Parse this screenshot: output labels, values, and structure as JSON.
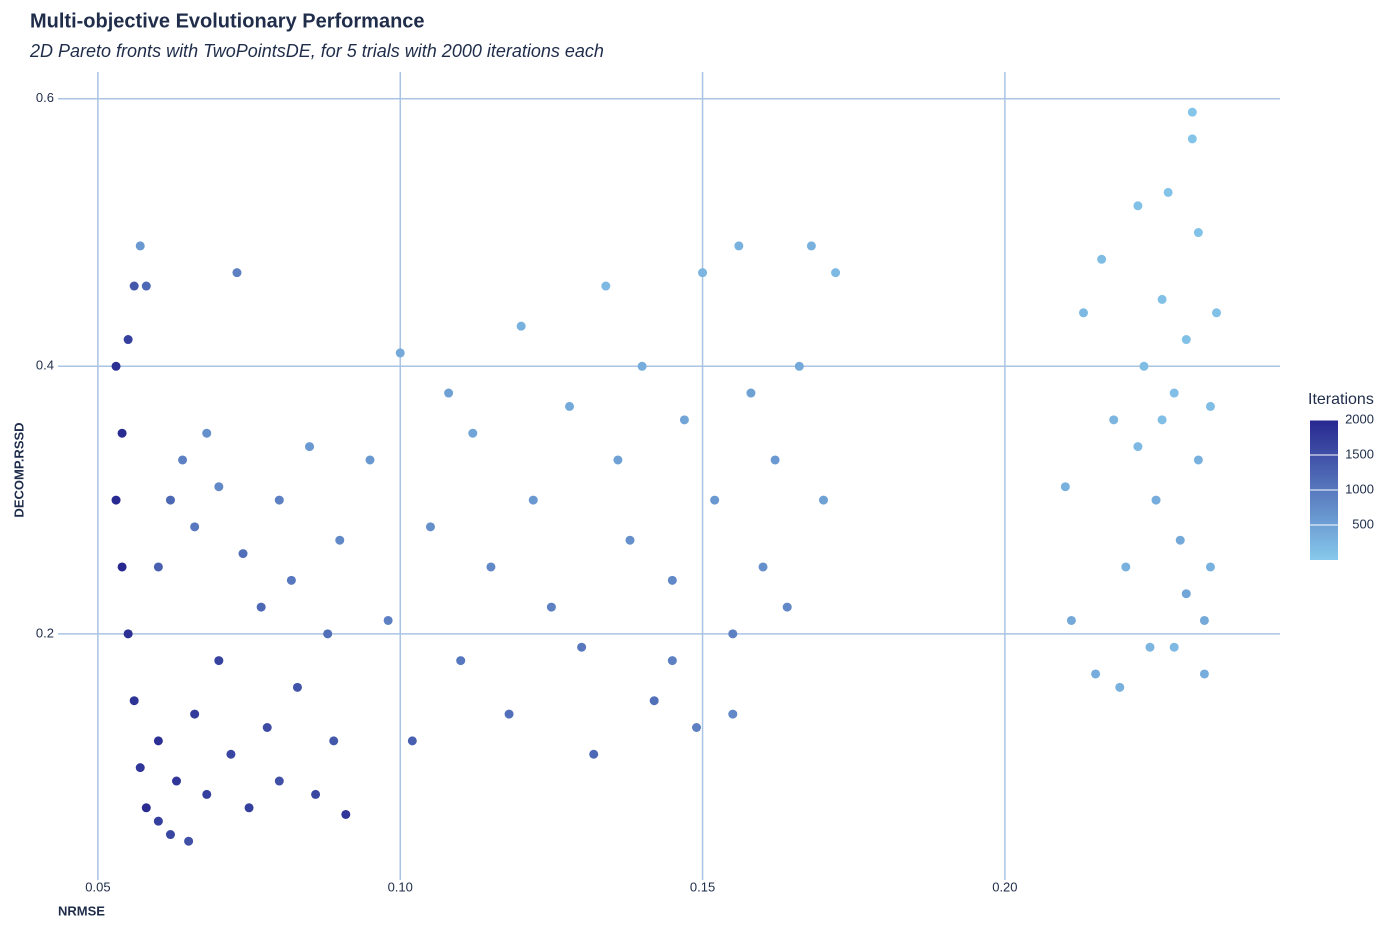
{
  "chart_data": {
    "type": "scatter",
    "title": "Multi-objective Evolutionary Performance",
    "subtitle": "2D Pareto fronts with TwoPointsDE, for 5 trials with 2000 iterations each",
    "x_label": "NRMSE",
    "y_label": "DECOMP.RSSD",
    "xlim": [
      0.0434,
      0.2455
    ],
    "ylim": [
      0.016,
      0.62
    ],
    "xticks": [
      0.05,
      {
        "value": 0.1,
        "label": "0.10"
      },
      0.15,
      {
        "value": 0.2,
        "label": "0.20"
      }
    ],
    "yticks": [
      0.2,
      0.4,
      0.6
    ],
    "grid": true,
    "color_scale": {
      "title": "Iterations",
      "lim": [
        0,
        2000
      ],
      "ticks": [
        500,
        1000,
        1500,
        2000
      ],
      "low": "#87c9ec",
      "high": "#27278f"
    },
    "x": [
      0.053,
      0.054,
      0.053,
      0.054,
      0.055,
      0.056,
      0.057,
      0.058,
      0.06,
      0.062,
      0.065,
      0.055,
      0.056,
      0.057,
      0.058,
      0.06,
      0.063,
      0.066,
      0.068,
      0.07,
      0.072,
      0.075,
      0.078,
      0.08,
      0.083,
      0.086,
      0.089,
      0.091,
      0.06,
      0.062,
      0.064,
      0.066,
      0.068,
      0.07,
      0.073,
      0.074,
      0.077,
      0.08,
      0.082,
      0.085,
      0.088,
      0.09,
      0.095,
      0.098,
      0.1,
      0.102,
      0.105,
      0.108,
      0.11,
      0.112,
      0.115,
      0.118,
      0.12,
      0.122,
      0.125,
      0.128,
      0.13,
      0.132,
      0.134,
      0.136,
      0.138,
      0.14,
      0.142,
      0.145,
      0.147,
      0.149,
      0.15,
      0.152,
      0.155,
      0.156,
      0.158,
      0.16,
      0.162,
      0.164,
      0.166,
      0.168,
      0.17,
      0.172,
      0.155,
      0.145,
      0.21,
      0.211,
      0.213,
      0.215,
      0.216,
      0.218,
      0.22,
      0.222,
      0.223,
      0.224,
      0.225,
      0.226,
      0.227,
      0.228,
      0.229,
      0.23,
      0.231,
      0.231,
      0.232,
      0.232,
      0.233,
      0.233,
      0.234,
      0.235,
      0.234,
      0.228,
      0.219,
      0.226,
      0.23,
      0.222
    ],
    "y": [
      0.4,
      0.35,
      0.3,
      0.25,
      0.2,
      0.15,
      0.1,
      0.07,
      0.06,
      0.05,
      0.045,
      0.42,
      0.46,
      0.49,
      0.46,
      0.12,
      0.09,
      0.14,
      0.08,
      0.18,
      0.11,
      0.07,
      0.13,
      0.09,
      0.16,
      0.08,
      0.12,
      0.065,
      0.25,
      0.3,
      0.33,
      0.28,
      0.35,
      0.31,
      0.47,
      0.26,
      0.22,
      0.3,
      0.24,
      0.34,
      0.2,
      0.27,
      0.33,
      0.21,
      0.41,
      0.12,
      0.28,
      0.38,
      0.18,
      0.35,
      0.25,
      0.14,
      0.43,
      0.3,
      0.22,
      0.37,
      0.19,
      0.11,
      0.46,
      0.33,
      0.27,
      0.4,
      0.15,
      0.24,
      0.36,
      0.13,
      0.47,
      0.3,
      0.2,
      0.49,
      0.38,
      0.25,
      0.33,
      0.22,
      0.4,
      0.49,
      0.3,
      0.47,
      0.14,
      0.18,
      0.31,
      0.21,
      0.44,
      0.17,
      0.48,
      0.36,
      0.25,
      0.52,
      0.4,
      0.19,
      0.3,
      0.45,
      0.53,
      0.38,
      0.27,
      0.42,
      0.59,
      0.57,
      0.5,
      0.33,
      0.21,
      0.17,
      0.37,
      0.44,
      0.25,
      0.19,
      0.16,
      0.36,
      0.23,
      0.34
    ],
    "iterations": [
      1900,
      1950,
      1980,
      2000,
      1900,
      1850,
      1800,
      1950,
      1700,
      1600,
      1500,
      1700,
      1400,
      600,
      1200,
      1900,
      1800,
      1750,
      1700,
      1650,
      1600,
      1700,
      1550,
      1500,
      1450,
      1600,
      1400,
      1800,
      1300,
      1200,
      900,
      1000,
      700,
      800,
      900,
      1100,
      1200,
      900,
      1000,
      600,
      1100,
      800,
      600,
      900,
      400,
      1300,
      700,
      500,
      1000,
      450,
      800,
      1100,
      300,
      600,
      900,
      400,
      1000,
      1200,
      200,
      500,
      700,
      350,
      1100,
      800,
      450,
      900,
      250,
      600,
      900,
      300,
      500,
      700,
      600,
      800,
      400,
      300,
      500,
      200,
      800,
      900,
      300,
      400,
      200,
      350,
      150,
      250,
      300,
      100,
      150,
      250,
      350,
      100,
      80,
      120,
      400,
      100,
      50,
      60,
      90,
      300,
      400,
      350,
      150,
      100,
      300,
      200,
      300,
      120,
      450,
      200
    ]
  }
}
